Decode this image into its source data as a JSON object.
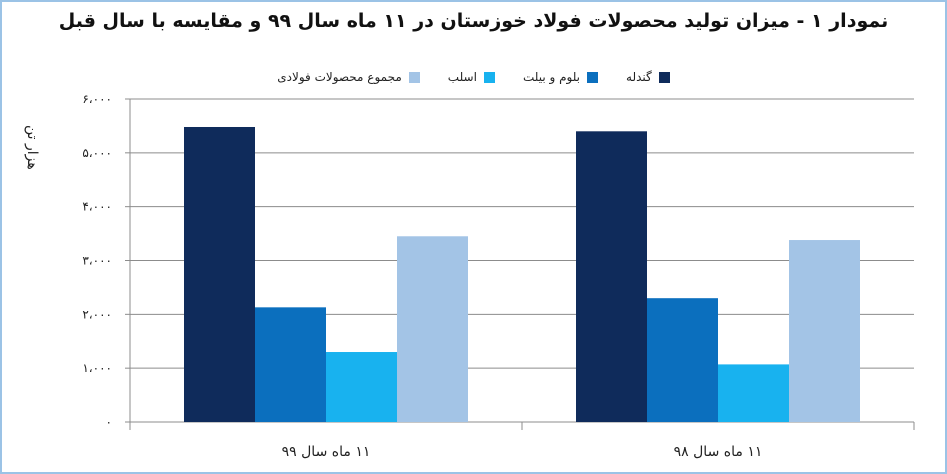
{
  "chart_data": {
    "type": "bar",
    "title": "نمودار ۱ - میزان تولید محصولات فولاد خوزستان در ۱۱ ماه سال ۹۹ و مقایسه با سال قبل",
    "ylabel": "هزار تن",
    "xlabel": "",
    "ylim": [
      0,
      6000
    ],
    "y_ticks": [
      0,
      1000,
      2000,
      3000,
      4000,
      5000,
      6000
    ],
    "y_tick_labels": [
      "۰",
      "۱،۰۰۰",
      "۲،۰۰۰",
      "۳،۰۰۰",
      "۴،۰۰۰",
      "۵،۰۰۰",
      "۶،۰۰۰"
    ],
    "categories": [
      "۱۱ ماه سال ۹۹",
      "۱۱ ماه سال ۹۸"
    ],
    "series": [
      {
        "name": "گندله",
        "color": "#0f2b5b",
        "values": [
          5480,
          5400
        ]
      },
      {
        "name": "بلوم و بیلت",
        "color": "#0b6fbe",
        "values": [
          2130,
          2300
        ]
      },
      {
        "name": "اسلب",
        "color": "#18b2ef",
        "values": [
          1300,
          1070
        ]
      },
      {
        "name": "مجموع محصولات فولادی",
        "color": "#a3c4e6",
        "values": [
          3450,
          3380
        ]
      }
    ],
    "grid": true,
    "legend_position": "top"
  }
}
